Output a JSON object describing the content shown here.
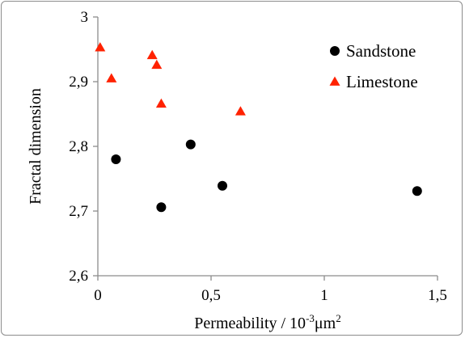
{
  "chart_data": {
    "type": "scatter",
    "title": "",
    "xlabel": "Permeability / 10",
    "xlabel_exponent": "-3",
    "xlabel_unit": "μm",
    "xlabel_unit_exponent": "2",
    "ylabel": "Fractal dimension",
    "xlim": [
      0,
      1.5
    ],
    "ylim": [
      2.6,
      3.0
    ],
    "x_ticks": [
      0,
      0.5,
      1,
      1.5
    ],
    "x_tick_labels": [
      "0",
      "0,5",
      "1",
      "1,5"
    ],
    "y_ticks": [
      2.6,
      2.7,
      2.8,
      2.9,
      3.0
    ],
    "y_tick_labels": [
      "2,6",
      "2,7",
      "2,8",
      "2,9",
      "3"
    ],
    "grid": false,
    "legend_position": "top-right",
    "series": [
      {
        "name": "Sandstone",
        "marker": "circle",
        "color": "#000000",
        "points": [
          {
            "x": 0.08,
            "y": 2.78
          },
          {
            "x": 0.28,
            "y": 2.706
          },
          {
            "x": 0.41,
            "y": 2.803
          },
          {
            "x": 0.55,
            "y": 2.739
          },
          {
            "x": 1.41,
            "y": 2.731
          }
        ]
      },
      {
        "name": "Limestone",
        "marker": "triangle",
        "color": "#ff2200",
        "points": [
          {
            "x": 0.01,
            "y": 2.953
          },
          {
            "x": 0.06,
            "y": 2.905
          },
          {
            "x": 0.24,
            "y": 2.941
          },
          {
            "x": 0.26,
            "y": 2.926
          },
          {
            "x": 0.28,
            "y": 2.866
          },
          {
            "x": 0.63,
            "y": 2.854
          }
        ]
      }
    ]
  }
}
